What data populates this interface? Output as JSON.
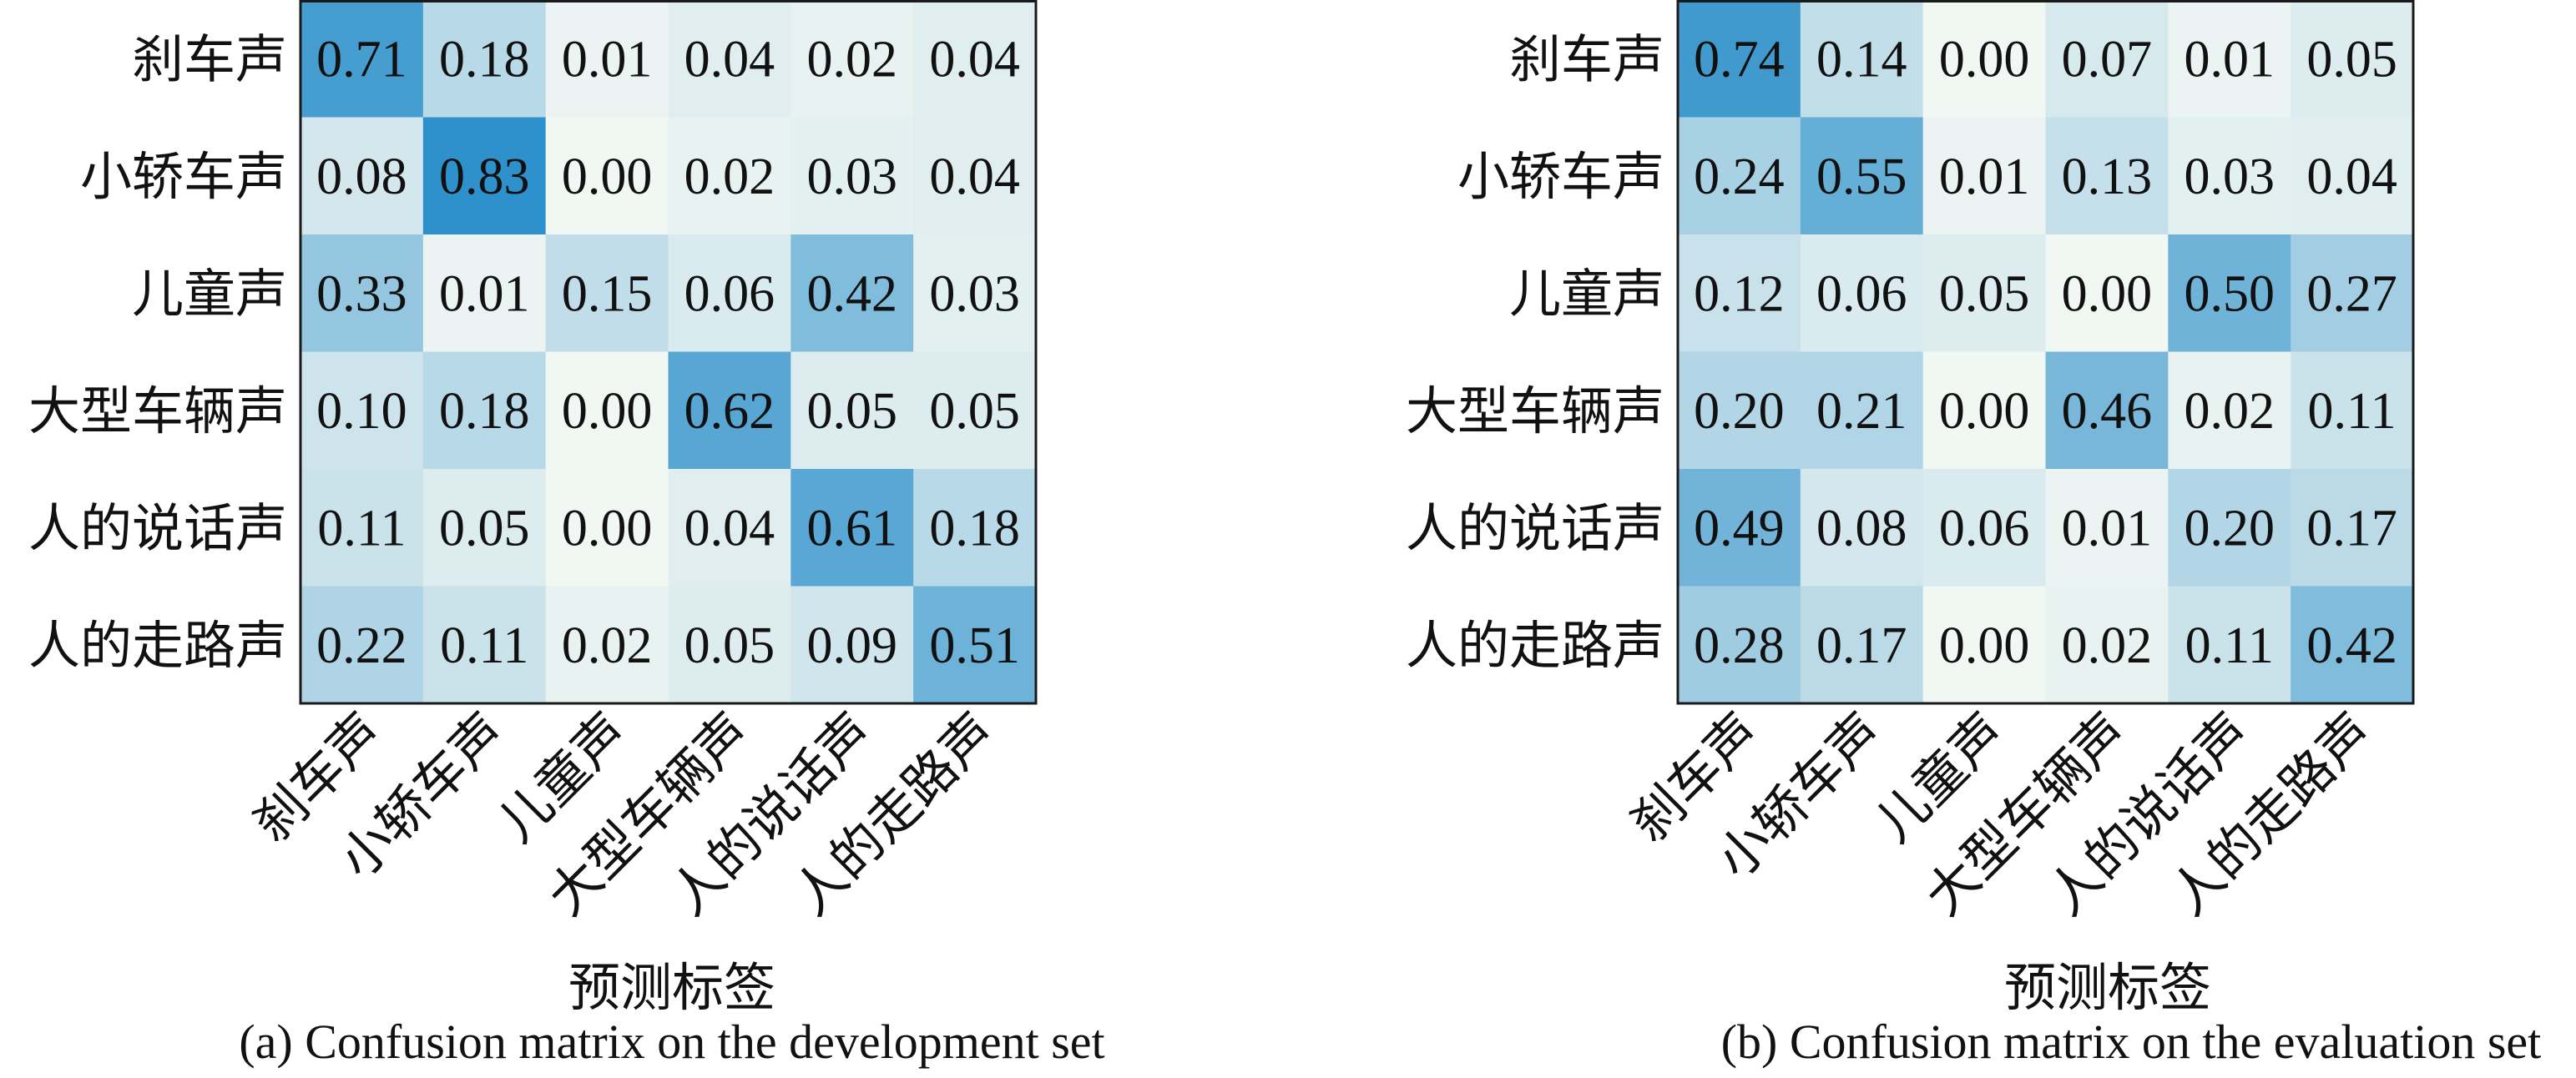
{
  "chart_data": [
    {
      "type": "heatmap",
      "caption": "(a) Confusion matrix on the development set",
      "xlabel": "预测标签",
      "ylabel": "",
      "row_labels": [
        "刹车声",
        "小轿车声",
        "儿童声",
        "大型车辆声",
        "人的说话声",
        "人的走路声"
      ],
      "col_labels": [
        "刹车声",
        "小轿车声",
        "儿童声",
        "大型车辆声",
        "人的说话声",
        "人的走路声"
      ],
      "values": [
        [
          0.71,
          0.18,
          0.01,
          0.04,
          0.02,
          0.04
        ],
        [
          0.08,
          0.83,
          0.0,
          0.02,
          0.03,
          0.04
        ],
        [
          0.33,
          0.01,
          0.15,
          0.06,
          0.42,
          0.03
        ],
        [
          0.1,
          0.18,
          0.0,
          0.62,
          0.05,
          0.05
        ],
        [
          0.11,
          0.05,
          0.0,
          0.04,
          0.61,
          0.18
        ],
        [
          0.22,
          0.11,
          0.02,
          0.05,
          0.09,
          0.51
        ]
      ],
      "color_low": "#f1f7f3",
      "color_high": "#2b8fca"
    },
    {
      "type": "heatmap",
      "caption": "(b) Confusion matrix on the evaluation set",
      "xlabel": "预测标签",
      "ylabel": "",
      "row_labels": [
        "刹车声",
        "小轿车声",
        "儿童声",
        "大型车辆声",
        "人的说话声",
        "人的走路声"
      ],
      "col_labels": [
        "刹车声",
        "小轿车声",
        "儿童声",
        "大型车辆声",
        "人的说话声",
        "人的走路声"
      ],
      "values": [
        [
          0.74,
          0.14,
          0.0,
          0.07,
          0.01,
          0.05
        ],
        [
          0.24,
          0.55,
          0.01,
          0.13,
          0.03,
          0.04
        ],
        [
          0.12,
          0.06,
          0.05,
          0.0,
          0.5,
          0.27
        ],
        [
          0.2,
          0.21,
          0.0,
          0.46,
          0.02,
          0.11
        ],
        [
          0.49,
          0.08,
          0.06,
          0.01,
          0.2,
          0.17
        ],
        [
          0.28,
          0.17,
          0.0,
          0.02,
          0.11,
          0.42
        ]
      ],
      "color_low": "#f1f7f3",
      "color_high": "#2b8fca"
    }
  ]
}
